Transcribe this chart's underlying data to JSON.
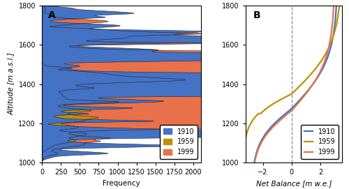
{
  "alt_min": 1000,
  "alt_max": 1800,
  "panel_A_label": "A",
  "panel_B_label": "B",
  "xlabel_A": "Frequency",
  "ylabel_A": "Altitude [m a.s.l.]",
  "xlabel_B": "Net Balance [m w.e.]",
  "xlim_A": [
    0,
    2100
  ],
  "xlim_B": [
    -3.2,
    3.5
  ],
  "yticks": [
    1000,
    1200,
    1400,
    1600,
    1800
  ],
  "xticks_A": [
    0,
    250,
    500,
    750,
    1000,
    1250,
    1500,
    1750,
    2000
  ],
  "xticks_B": [
    -2,
    0,
    2
  ],
  "color_1910": "#4472C4",
  "color_1959": "#BF9000",
  "color_1999": "#E8704A",
  "title_fontsize": 10,
  "label_fontsize": 7.5,
  "tick_fontsize": 7
}
